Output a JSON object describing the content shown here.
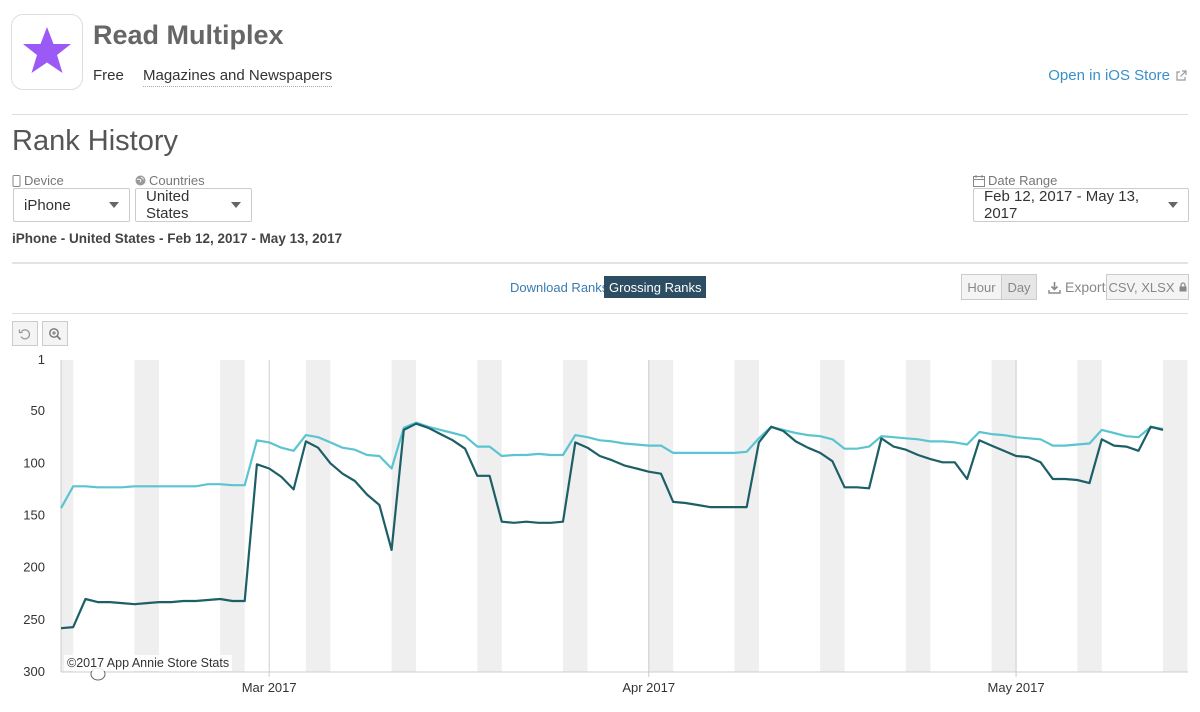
{
  "app": {
    "title": "Read Multiplex",
    "price": "Free",
    "category": "Magazines and Newspapers",
    "open_link": "Open in iOS Store",
    "icon": "purple-star-icon",
    "icon_color": "#9b59f5"
  },
  "rank_history": {
    "title": "Rank History",
    "device_label": "Device",
    "device_value": "iPhone",
    "countries_label": "Countries",
    "countries_value": "United States",
    "date_range_label": "Date Range",
    "date_range_value": "Feb 12, 2017 - May 13, 2017",
    "summary": "iPhone - United States - Feb 12, 2017 - May 13, 2017"
  },
  "tabs": {
    "download": "Download Ranks",
    "grossing": "Grossing Ranks"
  },
  "controls": {
    "hour": "Hour",
    "day": "Day",
    "export": "Export",
    "formats": "CSV, XLSX"
  },
  "copyright": "©2017 App Annie Store Stats",
  "colors": {
    "series_light": "#5bc4d1",
    "series_dark": "#1d5f66",
    "weekend": "#efefef",
    "link": "#3a7bb0",
    "active_tab": "#2d4d63"
  },
  "chart_data": {
    "type": "line",
    "x_start": "2017-02-12",
    "x_end": "2017-05-13",
    "x_ticks": [
      {
        "date": "2017-03-01",
        "label": "Mar 2017"
      },
      {
        "date": "2017-04-01",
        "label": "Apr 2017"
      },
      {
        "date": "2017-05-01",
        "label": "May 2017"
      }
    ],
    "y_reversed": true,
    "y_ticks": [
      1,
      50,
      100,
      150,
      200,
      250,
      300
    ],
    "ylim": [
      1,
      300
    ],
    "grid": true,
    "weekend_shading": true,
    "series": [
      {
        "color": "#5bc4d1",
        "points": [
          [
            "2017-02-12",
            143
          ],
          [
            "2017-02-13",
            122
          ],
          [
            "2017-02-14",
            122
          ],
          [
            "2017-02-15",
            123
          ],
          [
            "2017-02-16",
            123
          ],
          [
            "2017-02-17",
            123
          ],
          [
            "2017-02-18",
            122
          ],
          [
            "2017-02-19",
            122
          ],
          [
            "2017-02-20",
            122
          ],
          [
            "2017-02-21",
            122
          ],
          [
            "2017-02-22",
            122
          ],
          [
            "2017-02-23",
            122
          ],
          [
            "2017-02-24",
            120
          ],
          [
            "2017-02-25",
            120
          ],
          [
            "2017-02-26",
            121
          ],
          [
            "2017-02-27",
            121
          ],
          [
            "2017-02-28",
            78
          ],
          [
            "2017-03-01",
            80
          ],
          [
            "2017-03-02",
            85
          ],
          [
            "2017-03-03",
            88
          ],
          [
            "2017-03-04",
            73
          ],
          [
            "2017-03-05",
            75
          ],
          [
            "2017-03-06",
            80
          ],
          [
            "2017-03-07",
            85
          ],
          [
            "2017-03-08",
            87
          ],
          [
            "2017-03-09",
            92
          ],
          [
            "2017-03-10",
            93
          ],
          [
            "2017-03-11",
            105
          ],
          [
            "2017-03-12",
            66
          ],
          [
            "2017-03-13",
            61
          ],
          [
            "2017-03-14",
            65
          ],
          [
            "2017-03-15",
            68
          ],
          [
            "2017-03-16",
            71
          ],
          [
            "2017-03-17",
            74
          ],
          [
            "2017-03-18",
            84
          ],
          [
            "2017-03-19",
            84
          ],
          [
            "2017-03-20",
            93
          ],
          [
            "2017-03-21",
            92
          ],
          [
            "2017-03-22",
            92
          ],
          [
            "2017-03-23",
            91
          ],
          [
            "2017-03-24",
            92
          ],
          [
            "2017-03-25",
            92
          ],
          [
            "2017-03-26",
            73
          ],
          [
            "2017-03-27",
            75
          ],
          [
            "2017-03-28",
            78
          ],
          [
            "2017-03-29",
            79
          ],
          [
            "2017-03-30",
            81
          ],
          [
            "2017-03-31",
            82
          ],
          [
            "2017-04-01",
            83
          ],
          [
            "2017-04-02",
            83
          ],
          [
            "2017-04-03",
            90
          ],
          [
            "2017-04-04",
            90
          ],
          [
            "2017-04-05",
            90
          ],
          [
            "2017-04-06",
            90
          ],
          [
            "2017-04-07",
            90
          ],
          [
            "2017-04-08",
            90
          ],
          [
            "2017-04-09",
            89
          ],
          [
            "2017-04-10",
            76
          ],
          [
            "2017-04-11",
            65
          ],
          [
            "2017-04-12",
            68
          ],
          [
            "2017-04-13",
            71
          ],
          [
            "2017-04-14",
            73
          ],
          [
            "2017-04-15",
            74
          ],
          [
            "2017-04-16",
            77
          ],
          [
            "2017-04-17",
            86
          ],
          [
            "2017-04-18",
            86
          ],
          [
            "2017-04-19",
            84
          ],
          [
            "2017-04-20",
            74
          ],
          [
            "2017-04-21",
            75
          ],
          [
            "2017-04-22",
            76
          ],
          [
            "2017-04-23",
            77
          ],
          [
            "2017-04-24",
            79
          ],
          [
            "2017-04-25",
            79
          ],
          [
            "2017-04-26",
            80
          ],
          [
            "2017-04-27",
            82
          ],
          [
            "2017-04-28",
            70
          ],
          [
            "2017-04-29",
            72
          ],
          [
            "2017-04-30",
            73
          ],
          [
            "2017-05-01",
            75
          ],
          [
            "2017-05-02",
            76
          ],
          [
            "2017-05-03",
            77
          ],
          [
            "2017-05-04",
            83
          ],
          [
            "2017-05-05",
            83
          ],
          [
            "2017-05-06",
            82
          ],
          [
            "2017-05-07",
            81
          ],
          [
            "2017-05-08",
            68
          ],
          [
            "2017-05-09",
            71
          ],
          [
            "2017-05-10",
            74
          ],
          [
            "2017-05-11",
            75
          ],
          [
            "2017-05-12",
            65
          ],
          [
            "2017-05-13",
            67
          ]
        ]
      },
      {
        "color": "#1d5f66",
        "points": [
          [
            "2017-02-12",
            258
          ],
          [
            "2017-02-13",
            257
          ],
          [
            "2017-02-14",
            230
          ],
          [
            "2017-02-15",
            233
          ],
          [
            "2017-02-16",
            233
          ],
          [
            "2017-02-17",
            234
          ],
          [
            "2017-02-18",
            235
          ],
          [
            "2017-02-19",
            234
          ],
          [
            "2017-02-20",
            233
          ],
          [
            "2017-02-21",
            233
          ],
          [
            "2017-02-22",
            232
          ],
          [
            "2017-02-23",
            232
          ],
          [
            "2017-02-24",
            231
          ],
          [
            "2017-02-25",
            230
          ],
          [
            "2017-02-26",
            232
          ],
          [
            "2017-02-27",
            232
          ],
          [
            "2017-02-28",
            101
          ],
          [
            "2017-03-01",
            105
          ],
          [
            "2017-03-02",
            113
          ],
          [
            "2017-03-03",
            125
          ],
          [
            "2017-03-04",
            79
          ],
          [
            "2017-03-05",
            85
          ],
          [
            "2017-03-06",
            100
          ],
          [
            "2017-03-07",
            110
          ],
          [
            "2017-03-08",
            117
          ],
          [
            "2017-03-09",
            130
          ],
          [
            "2017-03-10",
            140
          ],
          [
            "2017-03-11",
            183
          ],
          [
            "2017-03-12",
            68
          ],
          [
            "2017-03-13",
            62
          ],
          [
            "2017-03-14",
            66
          ],
          [
            "2017-03-15",
            72
          ],
          [
            "2017-03-16",
            78
          ],
          [
            "2017-03-17",
            86
          ],
          [
            "2017-03-18",
            112
          ],
          [
            "2017-03-19",
            112
          ],
          [
            "2017-03-20",
            156
          ],
          [
            "2017-03-21",
            157
          ],
          [
            "2017-03-22",
            156
          ],
          [
            "2017-03-23",
            157
          ],
          [
            "2017-03-24",
            157
          ],
          [
            "2017-03-25",
            156
          ],
          [
            "2017-03-26",
            80
          ],
          [
            "2017-03-27",
            85
          ],
          [
            "2017-03-28",
            93
          ],
          [
            "2017-03-29",
            97
          ],
          [
            "2017-03-30",
            102
          ],
          [
            "2017-03-31",
            105
          ],
          [
            "2017-04-01",
            108
          ],
          [
            "2017-04-02",
            110
          ],
          [
            "2017-04-03",
            137
          ],
          [
            "2017-04-04",
            138
          ],
          [
            "2017-04-05",
            140
          ],
          [
            "2017-04-06",
            142
          ],
          [
            "2017-04-07",
            142
          ],
          [
            "2017-04-08",
            142
          ],
          [
            "2017-04-09",
            142
          ],
          [
            "2017-04-10",
            80
          ],
          [
            "2017-04-11",
            65
          ],
          [
            "2017-04-12",
            69
          ],
          [
            "2017-04-13",
            79
          ],
          [
            "2017-04-14",
            85
          ],
          [
            "2017-04-15",
            90
          ],
          [
            "2017-04-16",
            98
          ],
          [
            "2017-04-17",
            123
          ],
          [
            "2017-04-18",
            123
          ],
          [
            "2017-04-19",
            124
          ],
          [
            "2017-04-20",
            76
          ],
          [
            "2017-04-21",
            84
          ],
          [
            "2017-04-22",
            87
          ],
          [
            "2017-04-23",
            92
          ],
          [
            "2017-04-24",
            96
          ],
          [
            "2017-04-25",
            99
          ],
          [
            "2017-04-26",
            99
          ],
          [
            "2017-04-27",
            115
          ],
          [
            "2017-04-28",
            78
          ],
          [
            "2017-04-29",
            83
          ],
          [
            "2017-04-30",
            88
          ],
          [
            "2017-05-01",
            93
          ],
          [
            "2017-05-02",
            94
          ],
          [
            "2017-05-03",
            99
          ],
          [
            "2017-05-04",
            115
          ],
          [
            "2017-05-05",
            115
          ],
          [
            "2017-05-06",
            116
          ],
          [
            "2017-05-07",
            119
          ],
          [
            "2017-05-08",
            77
          ],
          [
            "2017-05-09",
            83
          ],
          [
            "2017-05-10",
            84
          ],
          [
            "2017-05-11",
            88
          ],
          [
            "2017-05-12",
            65
          ],
          [
            "2017-05-13",
            68
          ]
        ]
      }
    ]
  }
}
